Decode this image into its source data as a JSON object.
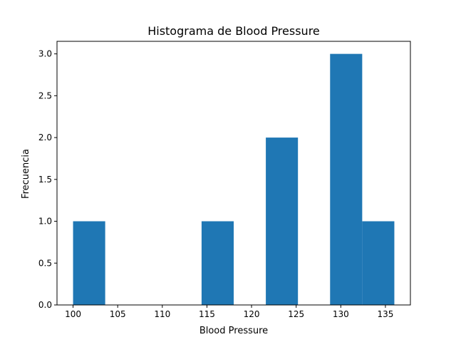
{
  "chart_data": {
    "type": "bar",
    "title": "Histograma de Blood Pressure",
    "xlabel": "Blood Pressure",
    "ylabel": "Frecuencia",
    "bins": [
      {
        "start": 100.0,
        "end": 103.6,
        "count": 1
      },
      {
        "start": 103.6,
        "end": 107.2,
        "count": 0
      },
      {
        "start": 107.2,
        "end": 110.8,
        "count": 0
      },
      {
        "start": 110.8,
        "end": 114.4,
        "count": 0
      },
      {
        "start": 114.4,
        "end": 118.0,
        "count": 1
      },
      {
        "start": 118.0,
        "end": 121.6,
        "count": 0
      },
      {
        "start": 121.6,
        "end": 125.2,
        "count": 2
      },
      {
        "start": 125.2,
        "end": 128.8,
        "count": 0
      },
      {
        "start": 128.8,
        "end": 132.4,
        "count": 3
      },
      {
        "start": 132.4,
        "end": 136.0,
        "count": 1
      }
    ],
    "xlim": [
      98.2,
      137.8
    ],
    "ylim": [
      0,
      3.15
    ],
    "xticks": [
      100,
      105,
      110,
      115,
      120,
      125,
      130,
      135
    ],
    "xtick_labels": [
      "100",
      "105",
      "110",
      "115",
      "120",
      "125",
      "130",
      "135"
    ],
    "yticks": [
      0,
      0.5,
      1.0,
      1.5,
      2.0,
      2.5,
      3.0
    ],
    "ytick_labels": [
      "0.0",
      "0.5",
      "1.0",
      "1.5",
      "2.0",
      "2.5",
      "3.0"
    ],
    "bar_color": "#1f77b4",
    "grid": false,
    "legend": "none"
  }
}
